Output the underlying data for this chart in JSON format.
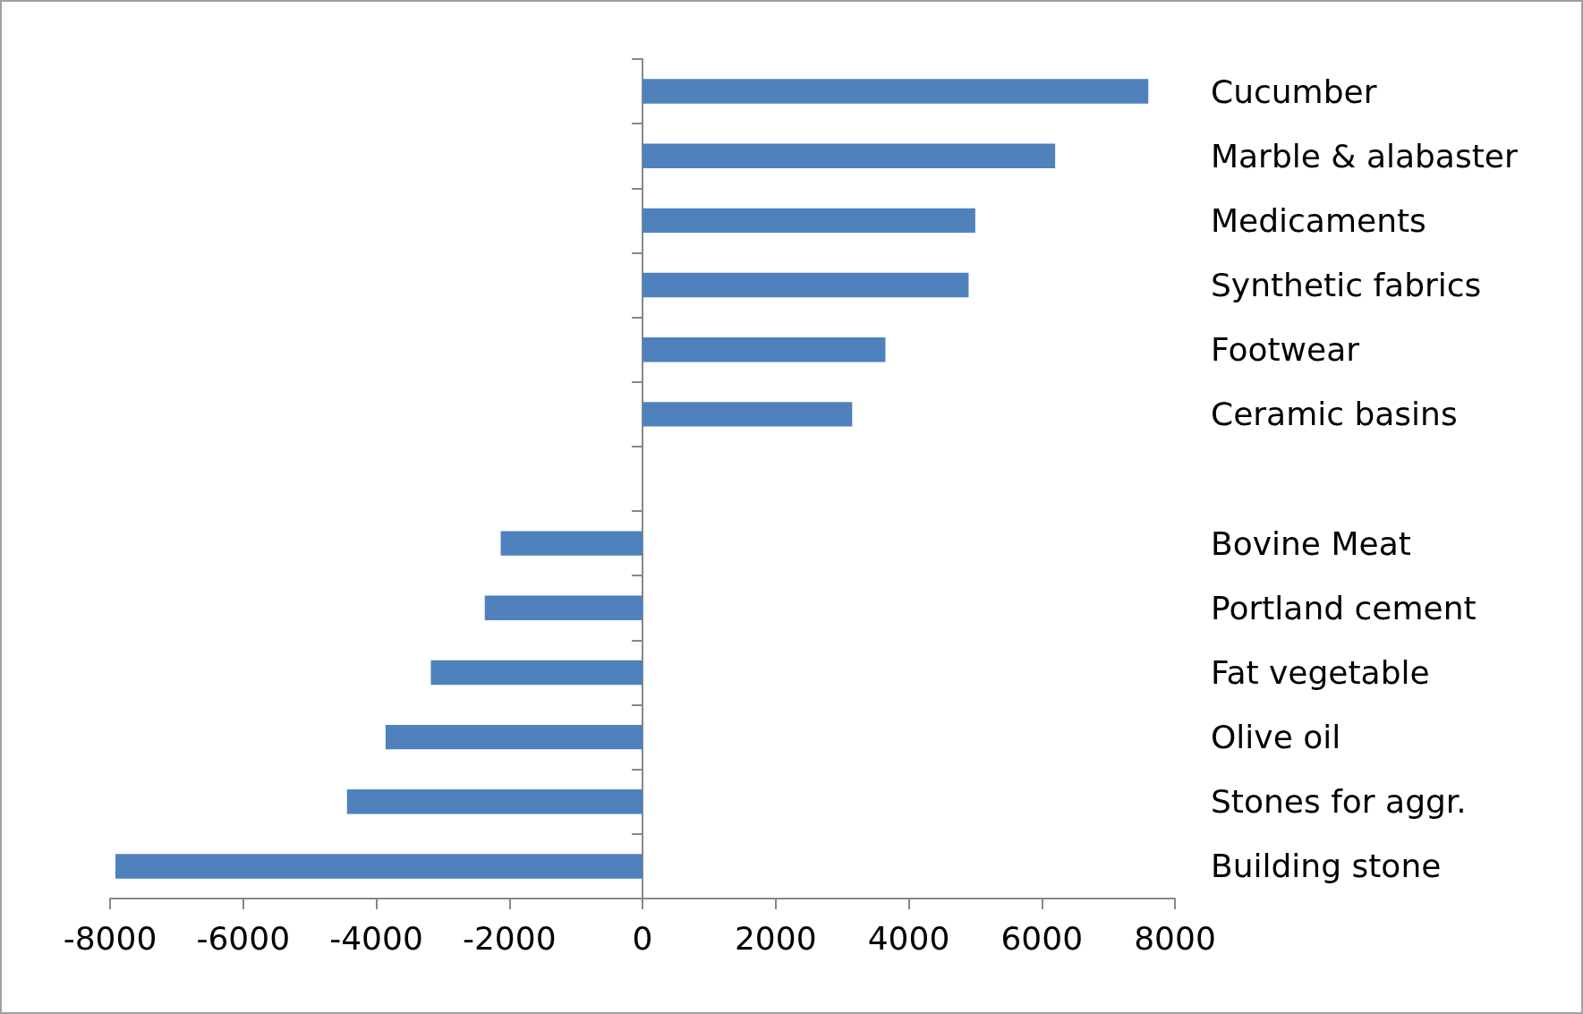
{
  "chart_data": {
    "type": "bar",
    "orientation": "horizontal",
    "categories": [
      "Cucumber",
      "Marble & alabaster",
      "Medicaments",
      "Synthetic fabrics",
      "Footwear",
      "Ceramic basins",
      null,
      "Bovine Meat",
      "Portland cement",
      "Fat vegetable",
      "Olive oil",
      "Stones for aggr.",
      "Building stone"
    ],
    "values": [
      7600,
      6200,
      5000,
      4900,
      3650,
      3150,
      null,
      -2130,
      -2370,
      -3180,
      -3860,
      -4440,
      -7920
    ],
    "color": "#4f81bd",
    "xlim": [
      -8000,
      8000
    ],
    "xticks": [
      -8000,
      -6000,
      -4000,
      -2000,
      0,
      2000,
      4000,
      6000,
      8000
    ]
  }
}
